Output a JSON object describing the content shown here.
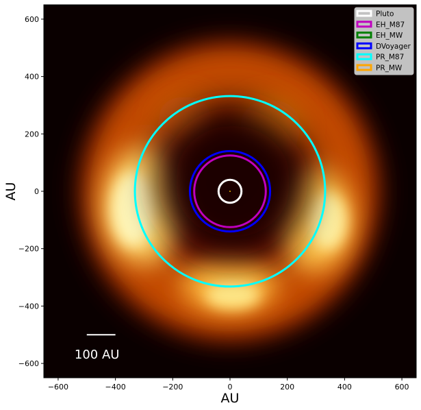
{
  "chart_data": {
    "type": "scatter",
    "title": "",
    "xlabel": "AU",
    "ylabel": "AU",
    "xlim": [
      -650,
      650
    ],
    "ylim": [
      -650,
      650
    ],
    "xticks": [
      -600,
      -400,
      -200,
      0,
      200,
      400,
      600
    ],
    "yticks": [
      -600,
      -400,
      -200,
      0,
      200,
      400,
      600
    ],
    "xtick_labels": [
      "−600",
      "−400",
      "−200",
      "0",
      "200",
      "400",
      "600"
    ],
    "ytick_labels": [
      "−600",
      "−400",
      "−200",
      "0",
      "200",
      "400",
      "600"
    ],
    "grid": false,
    "legend_position": "top-right",
    "background": "afmhot heatmap: dark center, bright asymmetric ring (brightest toward left and bottom-right)",
    "series": [
      {
        "name": "Pluto",
        "color": "#ffffff",
        "center": [
          0,
          0
        ],
        "radius": 40
      },
      {
        "name": "EH_M87",
        "color": "#bf00bf",
        "center": [
          0,
          0
        ],
        "radius": 125
      },
      {
        "name": "EH_MW",
        "color": "#008000",
        "center": [
          0,
          0
        ],
        "radius": 0.1
      },
      {
        "name": "DVoyager",
        "color": "#0000ff",
        "center": [
          0,
          0
        ],
        "radius": 140
      },
      {
        "name": "PR_M87",
        "color": "#00ffff",
        "center": [
          0,
          0
        ],
        "radius": 332
      },
      {
        "name": "PR_MW",
        "color": "#ffa500",
        "center": [
          0,
          0
        ],
        "radius": 0.3
      }
    ],
    "scale_bar": {
      "label": "100 AU",
      "x_start": -500,
      "x_end": -400,
      "y": -500
    }
  }
}
